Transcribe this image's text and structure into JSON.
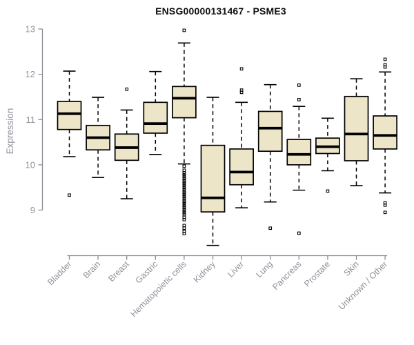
{
  "chart_data": {
    "type": "box",
    "title": "ENSG00000131467 - PSME3",
    "ylabel": "Expression",
    "xlabel": "",
    "ylim": [
      9,
      13
    ],
    "yticks": [
      9,
      10,
      11,
      12,
      13
    ],
    "grid": false,
    "legend": "none",
    "colors": {
      "box_fill": "#ede5c8",
      "box_line": "#000000",
      "axis": "#8a8d94",
      "tick_label": "#8f929b",
      "title": "#111111"
    },
    "categories": [
      "Bladder",
      "Brain",
      "Breast",
      "Gastric",
      "Hematopoietic cells",
      "Kidney",
      "Liver",
      "Lung",
      "Pancreas",
      "Prostate",
      "Skin",
      "Unknown / Other"
    ],
    "series": [
      {
        "label": "Bladder",
        "whislo": 10.18,
        "q1": 10.78,
        "med": 11.13,
        "q3": 11.4,
        "whishi": 12.07,
        "outliers": [
          9.33
        ]
      },
      {
        "label": "Brain",
        "whislo": 9.72,
        "q1": 10.33,
        "med": 10.6,
        "q3": 10.87,
        "whishi": 11.49,
        "outliers": []
      },
      {
        "label": "Breast",
        "whislo": 9.25,
        "q1": 10.1,
        "med": 10.38,
        "q3": 10.68,
        "whishi": 11.21,
        "outliers": [
          11.67
        ]
      },
      {
        "label": "Gastric",
        "whislo": 10.23,
        "q1": 10.7,
        "med": 10.91,
        "q3": 11.38,
        "whishi": 12.06,
        "outliers": []
      },
      {
        "label": "Hematopoietic cells",
        "whislo": 10.02,
        "q1": 11.04,
        "med": 11.47,
        "q3": 11.73,
        "whishi": 12.69,
        "outliers": [
          12.97,
          9.97,
          9.88,
          9.82,
          9.78,
          9.74,
          9.7,
          9.66,
          9.62,
          9.58,
          9.54,
          9.5,
          9.46,
          9.42,
          9.38,
          9.34,
          9.3,
          9.26,
          9.22,
          9.18,
          9.14,
          9.1,
          9.06,
          9.02,
          8.98,
          8.94,
          8.9,
          8.84,
          8.79,
          8.66,
          8.6,
          8.53,
          8.48
        ]
      },
      {
        "label": "Kidney",
        "whislo": 8.22,
        "q1": 8.96,
        "med": 9.27,
        "q3": 10.43,
        "whishi": 11.49,
        "outliers": []
      },
      {
        "label": "Liver",
        "whislo": 9.05,
        "q1": 9.56,
        "med": 9.84,
        "q3": 10.35,
        "whishi": 11.38,
        "outliers": [
          12.12,
          11.65,
          11.6
        ]
      },
      {
        "label": "Lung",
        "whislo": 9.18,
        "q1": 10.3,
        "med": 10.81,
        "q3": 11.18,
        "whishi": 11.77,
        "outliers": [
          8.6
        ]
      },
      {
        "label": "Pancreas",
        "whislo": 9.44,
        "q1": 10.0,
        "med": 10.23,
        "q3": 10.56,
        "whishi": 11.29,
        "outliers": [
          11.76,
          11.44,
          8.49
        ]
      },
      {
        "label": "Prostate",
        "whislo": 9.87,
        "q1": 10.25,
        "med": 10.4,
        "q3": 10.59,
        "whishi": 11.03,
        "outliers": [
          9.42
        ]
      },
      {
        "label": "Skin",
        "whislo": 9.54,
        "q1": 10.09,
        "med": 10.68,
        "q3": 11.51,
        "whishi": 11.9,
        "outliers": []
      },
      {
        "label": "Unknown / Other",
        "whislo": 9.38,
        "q1": 10.35,
        "med": 10.65,
        "q3": 11.08,
        "whishi": 12.05,
        "outliers": [
          12.33,
          12.21,
          12.16,
          9.16,
          9.11,
          8.95
        ]
      }
    ]
  }
}
